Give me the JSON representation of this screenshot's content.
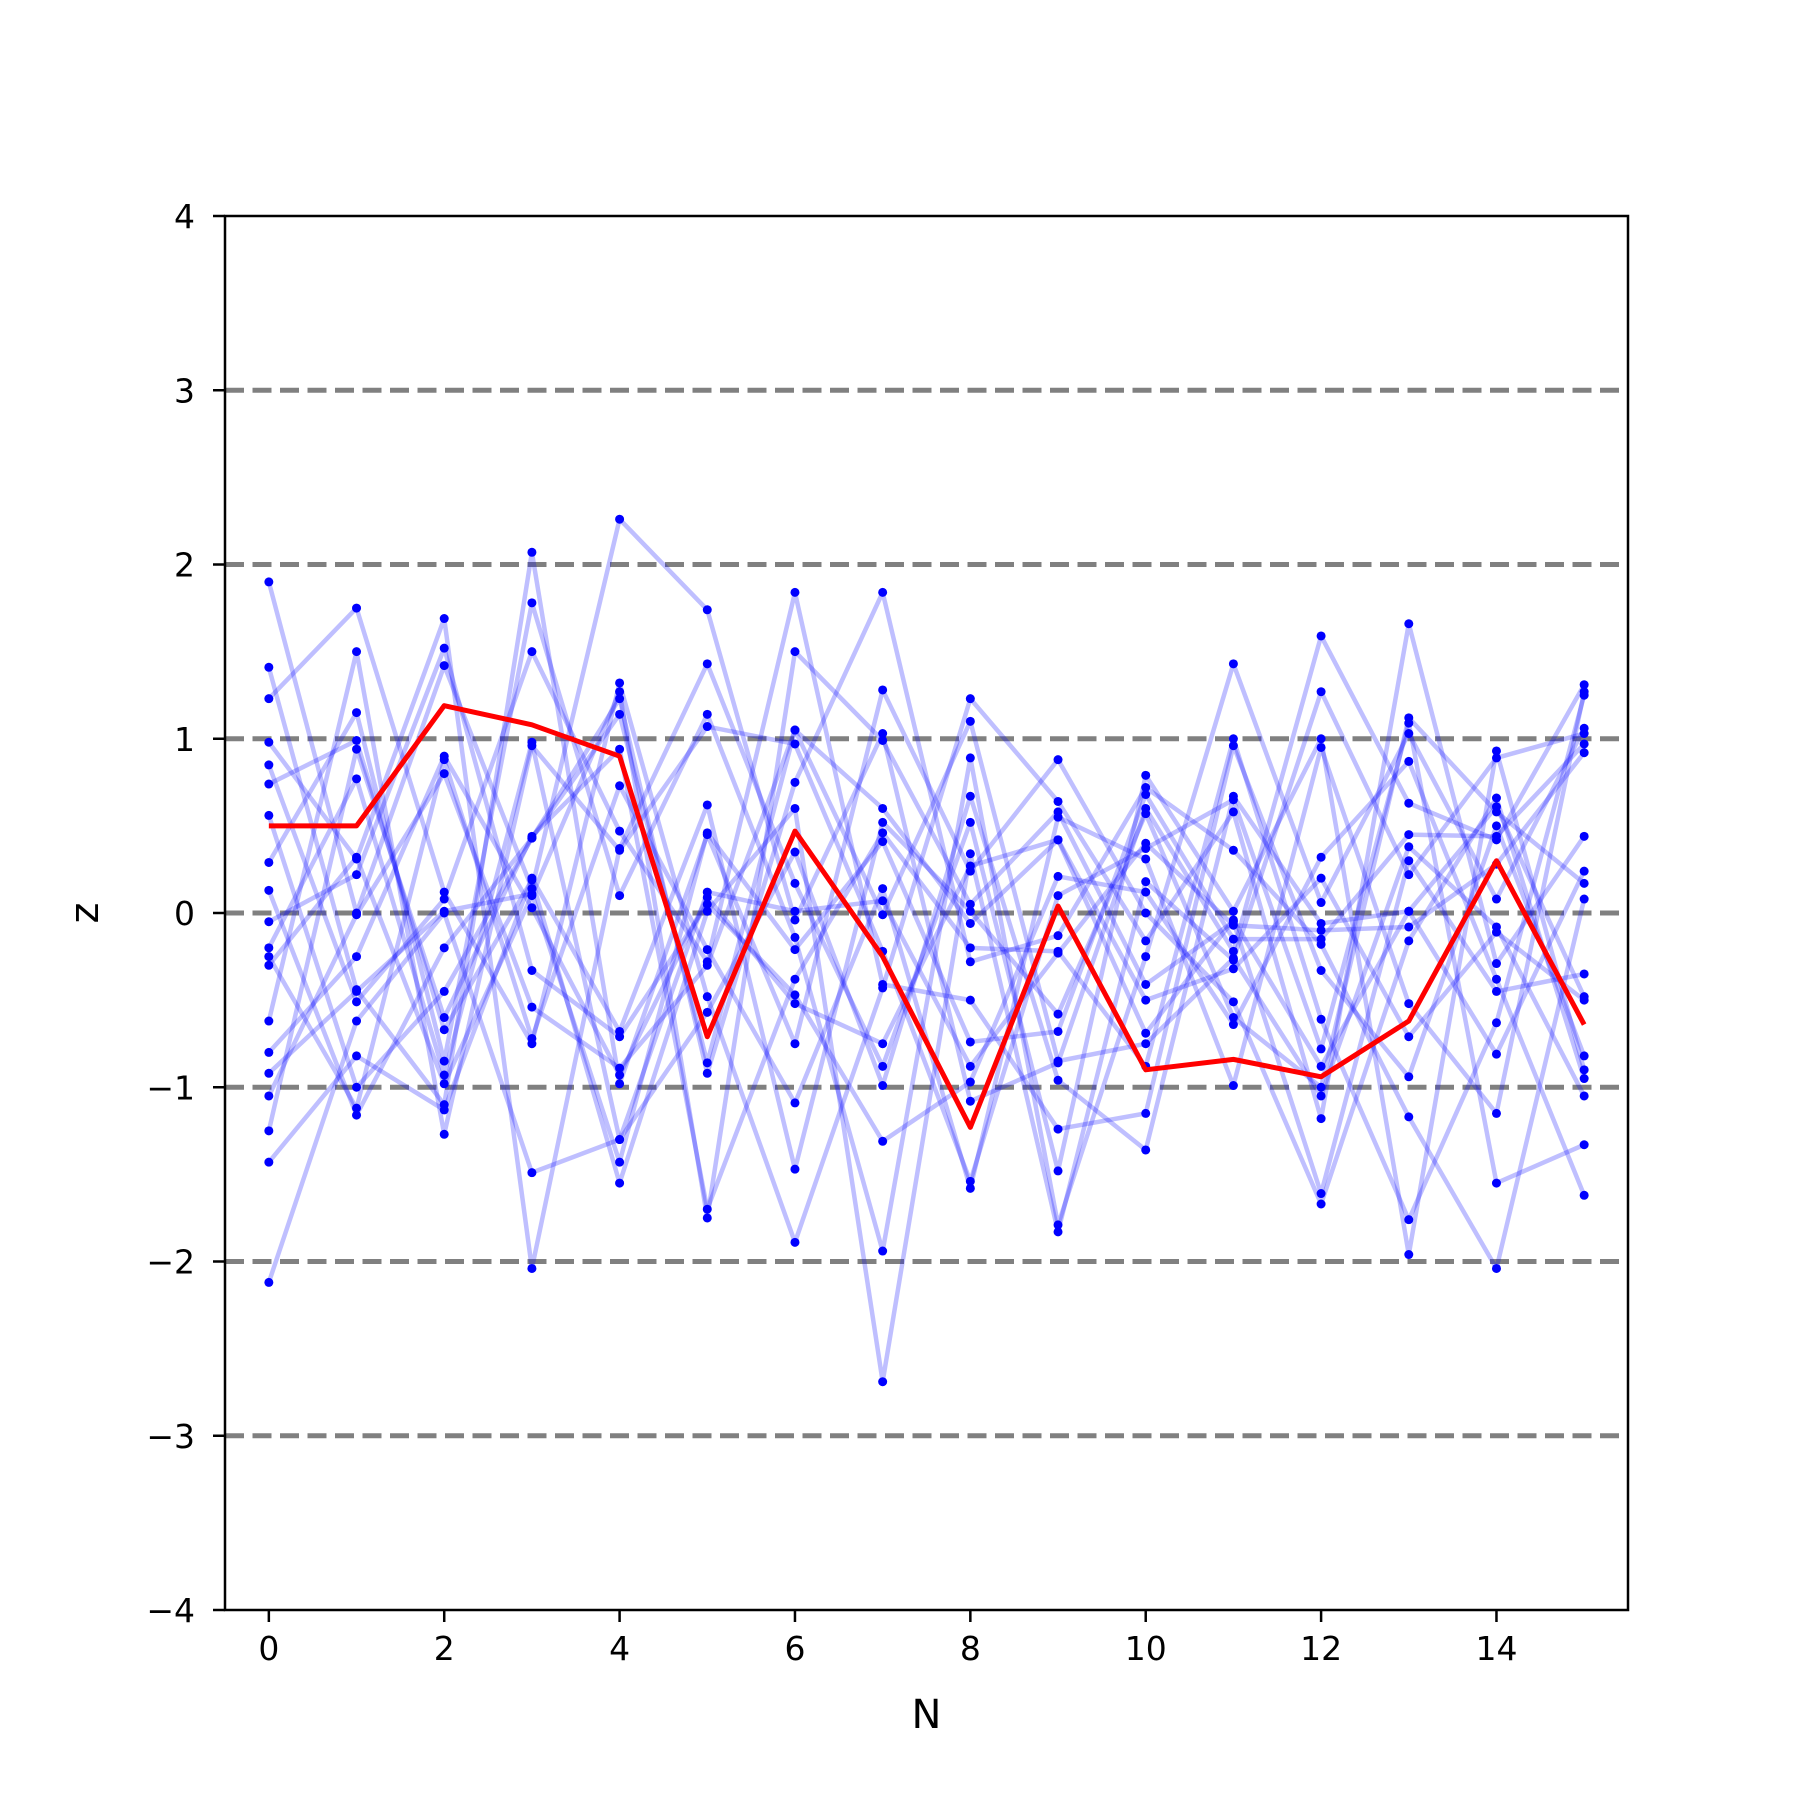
{
  "chart_data": {
    "type": "line",
    "title": "",
    "xlabel": "N",
    "ylabel": "z",
    "xlim": [
      -0.5,
      15.5
    ],
    "ylim": [
      -4,
      4
    ],
    "xticks": [
      0,
      2,
      4,
      6,
      8,
      10,
      12,
      14
    ],
    "yticks": [
      -4,
      -3,
      -2,
      -1,
      0,
      1,
      2,
      3,
      4
    ],
    "xtick_labels": [
      "0",
      "2",
      "4",
      "6",
      "8",
      "10",
      "12",
      "14"
    ],
    "ytick_labels": [
      "−4",
      "−3",
      "−2",
      "−1",
      "0",
      "1",
      "2",
      "3",
      "4"
    ],
    "reference_lines": [
      -3,
      -2,
      -1,
      0,
      1,
      2,
      3
    ],
    "reference_line_style": "dashed",
    "reference_line_color": "#808080",
    "background_series_color": "#0000ff",
    "background_series_opacity": 0.25,
    "highlight_color": "#ff0000",
    "grid": false,
    "legend": "none",
    "x": [
      0,
      1,
      2,
      3,
      4,
      5,
      6,
      7,
      8,
      9,
      10,
      11,
      12,
      13,
      14,
      15
    ],
    "highlight_series": {
      "values": [
        0.5,
        0.5,
        1.19,
        1.08,
        0.9,
        -0.71,
        0.47,
        -0.25,
        -1.23,
        0.04,
        -0.9,
        -0.84,
        -0.94,
        -0.62,
        0.3,
        -0.64
      ]
    },
    "background_series": [
      {
        "values": [
          1.9,
          0.0,
          1.42,
          0.14,
          2.26,
          1.74,
          -0.04,
          1.03,
          -1.08,
          -0.86,
          0.6,
          -0.22,
          1.59,
          0.63,
          0.42,
          1.31
        ]
      },
      {
        "values": [
          1.41,
          -0.44,
          -1.1,
          2.07,
          -0.98,
          0.45,
          -0.75,
          1.28,
          0.24,
          0.88,
          0.0,
          -0.51,
          -1.67,
          -0.16,
          0.66,
          -0.95
        ]
      },
      {
        "values": [
          1.23,
          1.75,
          0.12,
          -0.75,
          1.32,
          -0.48,
          -1.89,
          -0.43,
          1.23,
          0.64,
          -0.16,
          0.58,
          -1.18,
          1.66,
          -0.29,
          0.44
        ]
      },
      {
        "values": [
          0.98,
          0.31,
          1.69,
          -2.04,
          0.37,
          1.43,
          0.17,
          -0.88,
          0.52,
          -1.48,
          0.79,
          0.01,
          1.0,
          -1.96,
          0.93,
          -0.9
        ]
      },
      {
        "values": [
          0.85,
          -0.51,
          0.08,
          1.5,
          0.47,
          -0.28,
          1.84,
          -0.41,
          -0.5,
          -1.24,
          -1.15,
          0.96,
          -0.33,
          -0.94,
          0.5,
          -0.82
        ]
      },
      {
        "values": [
          0.74,
          0.99,
          -0.67,
          0.19,
          -1.55,
          0.01,
          0.6,
          -2.69,
          0.34,
          -1.83,
          0.18,
          -0.27,
          1.27,
          0.22,
          0.89,
          1.03
        ]
      },
      {
        "values": [
          0.56,
          -1.0,
          -0.45,
          0.43,
          1.23,
          -0.92,
          0.75,
          1.84,
          -0.28,
          -0.13,
          0.72,
          0.36,
          -0.18,
          -1.17,
          -2.04,
          0.08
        ]
      },
      {
        "values": [
          0.29,
          1.15,
          -0.85,
          1.78,
          0.1,
          1.14,
          -0.14,
          -1.94,
          0.89,
          -1.79,
          -0.25,
          1.43,
          0.06,
          1.03,
          0.08,
          1.06
        ]
      },
      {
        "values": [
          0.13,
          -1.16,
          -0.2,
          0.43,
          1.14,
          -0.86,
          1.05,
          0.6,
          -0.06,
          0.42,
          -0.69,
          -0.04,
          -0.88,
          0.01,
          -0.81,
          0.24
        ]
      },
      {
        "values": [
          -0.05,
          0.22,
          1.52,
          -0.33,
          -0.71,
          0.05,
          -0.47,
          -1.31,
          -0.97,
          0.21,
          0.12,
          -0.64,
          0.32,
          0.87,
          -0.38,
          -1.62
        ]
      },
      {
        "values": [
          -0.2,
          0.77,
          -0.93,
          0.98,
          -1.3,
          -0.57,
          0.35,
          -0.99,
          0.67,
          -0.96,
          -1.36,
          0.67,
          -0.06,
          0.01,
          0.61,
          -0.48
        ]
      },
      {
        "values": [
          -0.25,
          -1.12,
          0.88,
          -0.72,
          0.73,
          -0.21,
          -1.09,
          0.14,
          -1.58,
          0.55,
          0.31,
          -0.99,
          0.95,
          -0.52,
          -1.15,
          1.27
        ]
      },
      {
        "values": [
          -0.3,
          0.32,
          -0.98,
          0.1,
          1.27,
          -1.75,
          1.5,
          0.99,
          0.05,
          0.58,
          -0.41,
          -0.05,
          -1.61,
          0.3,
          -0.45,
          -0.35
        ]
      },
      {
        "values": [
          -0.62,
          1.5,
          -1.27,
          0.96,
          0.36,
          1.07,
          0.97,
          -0.22,
          -1.54,
          0.1,
          0.37,
          0.65,
          -0.78,
          1.09,
          -1.55,
          -1.33
        ]
      },
      {
        "values": [
          -0.8,
          -0.25,
          0.9,
          0.03,
          -0.93,
          0.09,
          -0.52,
          -0.75,
          0.27,
          0.42,
          -0.5,
          -0.32,
          0.2,
          -0.71,
          -0.11,
          -0.5
        ]
      },
      {
        "values": [
          -0.92,
          -0.45,
          0.01,
          0.11,
          -1.43,
          0.46,
          -0.21,
          0.41,
          -0.74,
          -0.68,
          0.68,
          -0.15,
          -0.15,
          0.45,
          0.44,
          0.97
        ]
      },
      {
        "values": [
          -1.05,
          -0.01,
          0.8,
          -0.54,
          -0.89,
          -0.3,
          1.05,
          -0.01,
          1.1,
          -0.85,
          -0.75,
          -0.26,
          -1.05,
          0.38,
          -0.08,
          -1.05
        ]
      },
      {
        "values": [
          -1.25,
          0.94,
          -0.6,
          0.44,
          0.94,
          -1.7,
          -0.38,
          0.46,
          -0.2,
          -0.22,
          -0.88,
          1.0,
          -0.61,
          -1.76,
          -0.63,
          1.25
        ]
      },
      {
        "values": [
          -1.43,
          -0.82,
          -1.13,
          0.2,
          -0.68,
          0.62,
          -1.47,
          0.52,
          0.01,
          -0.58,
          0.57,
          -0.6,
          -1.0,
          1.12,
          0.58,
          0.17
        ]
      },
      {
        "values": [
          -2.12,
          -0.62,
          0.0,
          -1.49,
          -1.3,
          0.12,
          0.01,
          0.07,
          -0.88,
          -0.23,
          0.4,
          -0.07,
          -0.1,
          -0.08,
          0.28,
          0.92
        ]
      }
    ]
  }
}
